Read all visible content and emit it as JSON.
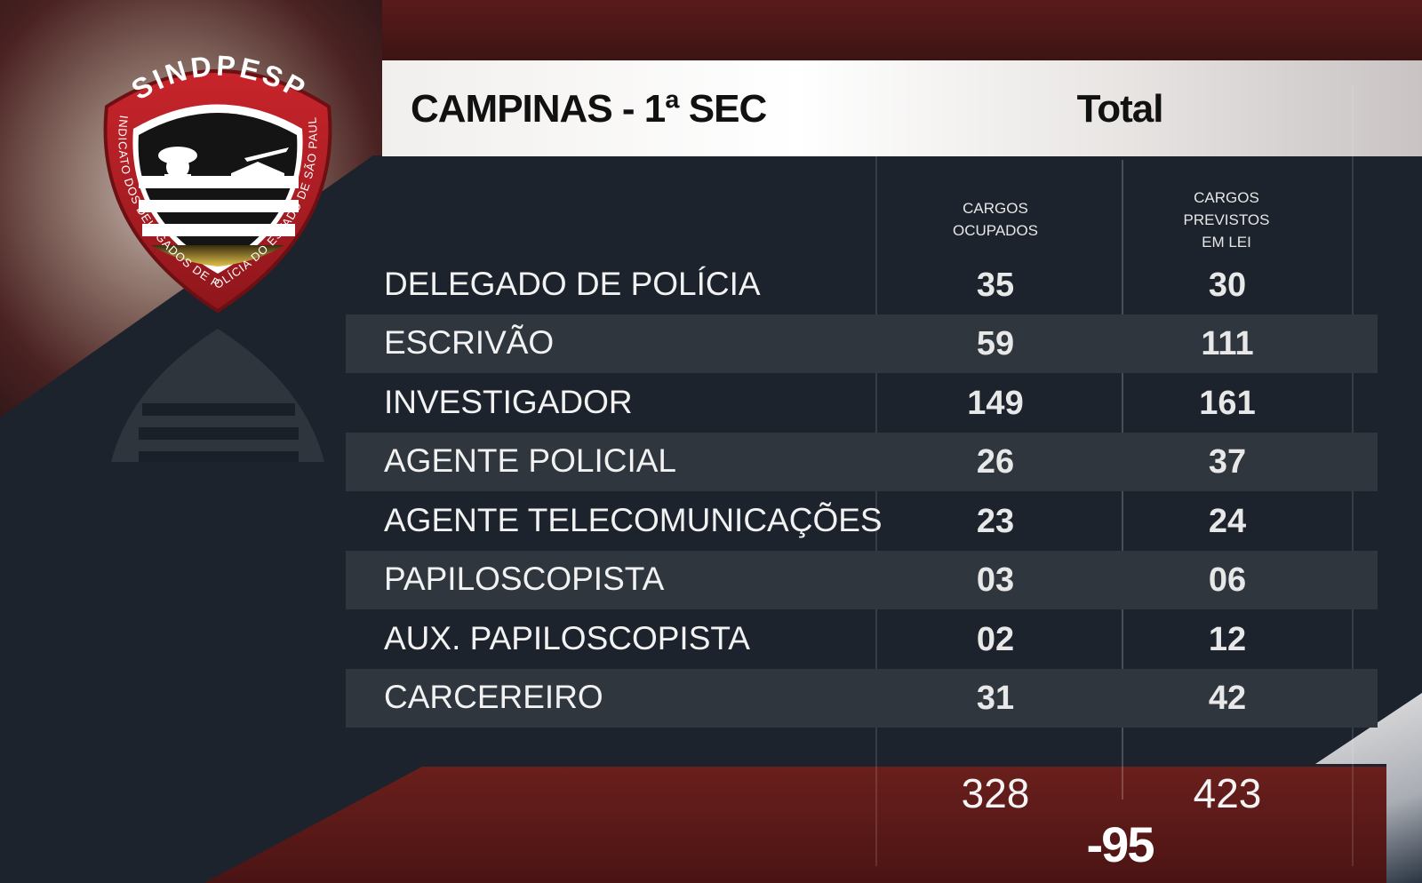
{
  "logo": {
    "acronym": "SINDPESP",
    "ring_text": "SINDICATO DOS DELEGADOS DE POLÍCIA DO ESTADO DE SÃO PAULO"
  },
  "header": {
    "title": "CAMPINAS - 1ª SEC",
    "total_label": "Total"
  },
  "columns": {
    "occupied": "CARGOS OCUPADOS",
    "planned_lines": [
      "CARGOS",
      "PREVISTOS",
      "EM LEI"
    ],
    "occupied_lines": [
      "CARGOS",
      "OCUPADOS"
    ]
  },
  "rows": [
    {
      "label": "DELEGADO DE POLÍCIA",
      "occupied": "35",
      "planned": "30"
    },
    {
      "label": "ESCRIVÃO",
      "occupied": "59",
      "planned": "111"
    },
    {
      "label": "INVESTIGADOR",
      "occupied": "149",
      "planned": "161"
    },
    {
      "label": "AGENTE POLICIAL",
      "occupied": "26",
      "planned": "37"
    },
    {
      "label": "AGENTE TELECOMUNICAÇÕES",
      "occupied": "23",
      "planned": "24"
    },
    {
      "label": "PAPILOSCOPISTA",
      "occupied": "03",
      "planned": "06"
    },
    {
      "label": "AUX. PAPILOSCOPISTA",
      "occupied": "02",
      "planned": "12"
    },
    {
      "label": "CARCEREIRO",
      "occupied": "31",
      "planned": "42"
    }
  ],
  "totals": {
    "occupied": "328",
    "planned": "423",
    "difference": "-95"
  },
  "colors": {
    "brand_red": "#b01f24",
    "dark_bg": "#1c232c",
    "row_shade": "#2f363e"
  }
}
